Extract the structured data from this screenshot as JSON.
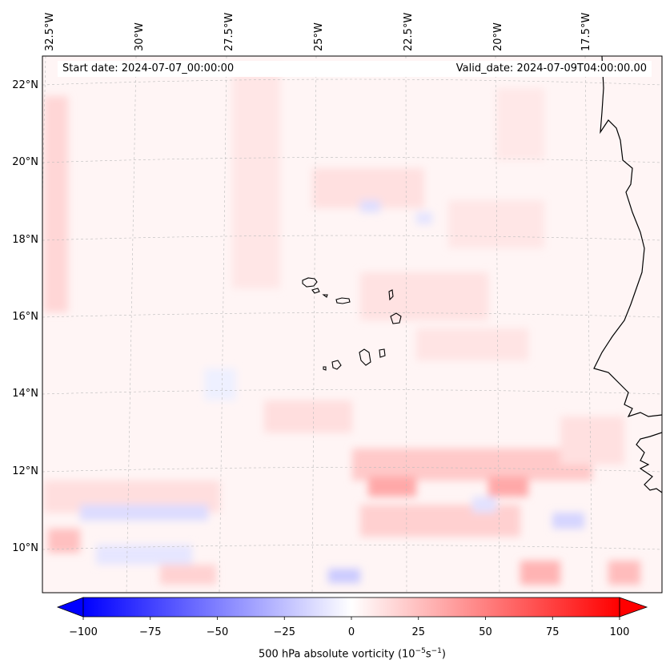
{
  "map": {
    "start_date": "Start date: 2024-07-07_00:00:00",
    "valid_date": "Valid_date: 2024-07-09T04:00:00.00",
    "longitude_labels": [
      "32.5°W",
      "30°W",
      "27.5°W",
      "25°W",
      "22.5°W",
      "20°W",
      "17.5°W"
    ],
    "latitude_labels": [
      "22°N",
      "20°N",
      "18°N",
      "16°N",
      "14°N",
      "12°N",
      "10°N"
    ],
    "gridlines": true,
    "field": "500 hPa absolute vorticity",
    "colormap": "bwr",
    "colors": {
      "negative": "#0000ff",
      "neutral": "#ffffff",
      "positive": "#ff0000",
      "coastline": "#000000"
    }
  },
  "colorbar": {
    "label_prefix": "500 hPa absolute vorticity (10",
    "label_exp1": "−5",
    "label_mid": "s",
    "label_exp2": "−1",
    "label_suffix": ")",
    "range": [
      -100,
      100
    ],
    "ticks": [
      "−100",
      "−75",
      "−50",
      "−25",
      "0",
      "25",
      "50",
      "75",
      "100"
    ],
    "extend": "both"
  }
}
